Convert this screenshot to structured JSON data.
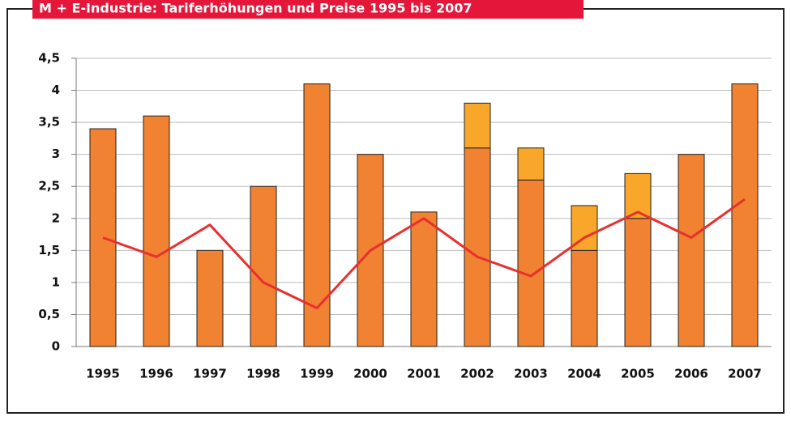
{
  "chart_data": {
    "type": "bar",
    "title": "M + E-Industrie: Tariferhöhungen und Preise 1995 bis 2007",
    "categories": [
      "1995",
      "1996",
      "1997",
      "1998",
      "1999",
      "2000",
      "2001",
      "2002",
      "2003",
      "2004",
      "2005",
      "2006",
      "2007"
    ],
    "series": [
      {
        "color": "#f08232",
        "values": [
          3.4,
          3.6,
          1.5,
          2.5,
          4.1,
          3.0,
          2.1,
          3.1,
          2.6,
          1.5,
          2.0,
          3.0,
          4.1
        ]
      },
      {
        "color": "#f9a72a",
        "values": [
          null,
          null,
          null,
          null,
          null,
          null,
          null,
          0.7,
          0.5,
          0.7,
          0.7,
          null,
          null
        ]
      },
      {
        "type": "line",
        "color": "#e8302e",
        "values": [
          1.7,
          1.4,
          1.9,
          1.0,
          0.6,
          1.5,
          2.0,
          1.4,
          1.1,
          1.7,
          2.1,
          1.7,
          2.3
        ]
      }
    ],
    "stacked": true,
    "ylim": [
      0,
      4.5
    ],
    "yticks": [
      0,
      {
        "value": 0.5,
        "label": "0,5"
      },
      1,
      {
        "value": 1.5,
        "label": "1,5"
      },
      2,
      {
        "value": 2.5,
        "label": "2,5"
      },
      3,
      {
        "value": 3.5,
        "label": "3,5"
      },
      4,
      {
        "value": 4.5,
        "label": "4,5"
      }
    ],
    "grid": true
  }
}
